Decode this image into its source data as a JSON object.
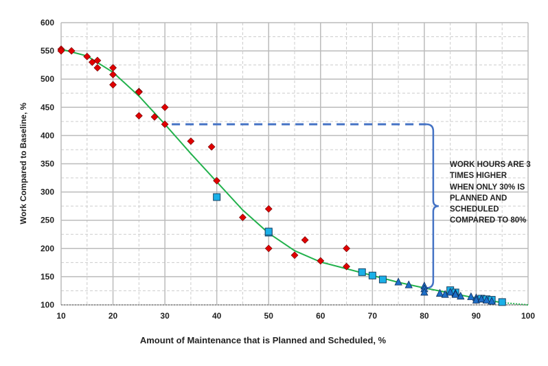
{
  "chart_data": {
    "type": "scatter",
    "title": "",
    "xlabel": "Amount of Maintenance that is Planned and Scheduled, %",
    "ylabel": "Work Compared to Baseline, %",
    "xlim": [
      10,
      100
    ],
    "ylim": [
      100,
      600
    ],
    "xticks": [
      10,
      20,
      30,
      40,
      50,
      60,
      70,
      80,
      90,
      100
    ],
    "yticks": [
      100,
      150,
      200,
      250,
      300,
      350,
      400,
      450,
      500,
      550,
      600
    ],
    "grid": true,
    "colors": {
      "diamond": "#e00000",
      "square": "#1ab0e8",
      "triangle": "#1e6fc8",
      "curve": "#22b14c",
      "annotation": "#4472c4"
    },
    "series": [
      {
        "marker": "diamond",
        "points": [
          [
            10,
            553
          ],
          [
            10,
            550
          ],
          [
            12,
            550
          ],
          [
            15,
            540
          ],
          [
            16,
            530
          ],
          [
            17,
            533
          ],
          [
            17,
            520
          ],
          [
            20,
            520
          ],
          [
            20,
            508
          ],
          [
            20,
            490
          ],
          [
            25,
            478
          ],
          [
            25,
            477
          ],
          [
            25,
            435
          ],
          [
            28,
            433
          ],
          [
            30,
            450
          ],
          [
            30,
            420
          ],
          [
            35,
            390
          ],
          [
            39,
            380
          ],
          [
            40,
            320
          ],
          [
            45,
            255
          ],
          [
            50,
            270
          ],
          [
            50,
            200
          ],
          [
            55,
            188
          ],
          [
            57,
            215
          ],
          [
            60,
            178
          ],
          [
            65,
            200
          ],
          [
            65,
            168
          ]
        ]
      },
      {
        "marker": "square",
        "points": [
          [
            40,
            291
          ],
          [
            50,
            228
          ],
          [
            50,
            230
          ],
          [
            68,
            158
          ],
          [
            70,
            152
          ],
          [
            72,
            145
          ],
          [
            85,
            126
          ],
          [
            86,
            122
          ],
          [
            91,
            111
          ],
          [
            92,
            110
          ],
          [
            93,
            109
          ],
          [
            95,
            105
          ]
        ]
      },
      {
        "marker": "triangle",
        "points": [
          [
            75,
            140
          ],
          [
            77,
            135
          ],
          [
            80,
            133
          ],
          [
            80,
            128
          ],
          [
            80,
            122
          ],
          [
            83,
            120
          ],
          [
            84,
            118
          ],
          [
            85,
            122
          ],
          [
            86,
            120
          ],
          [
            86,
            118
          ],
          [
            87,
            115
          ],
          [
            89,
            114
          ],
          [
            90,
            112
          ],
          [
            90,
            108
          ],
          [
            91,
            110
          ],
          [
            92,
            108
          ],
          [
            93,
            106
          ]
        ]
      }
    ],
    "trend_curve": [
      [
        10,
        553
      ],
      [
        15,
        541
      ],
      [
        20,
        512
      ],
      [
        25,
        470
      ],
      [
        30,
        420
      ],
      [
        35,
        368
      ],
      [
        40,
        318
      ],
      [
        45,
        268
      ],
      [
        50,
        227
      ],
      [
        55,
        196
      ],
      [
        60,
        176
      ],
      [
        65,
        164
      ],
      [
        70,
        152
      ],
      [
        75,
        140
      ],
      [
        80,
        130
      ],
      [
        85,
        121
      ],
      [
        90,
        112
      ],
      [
        95,
        104
      ],
      [
        100,
        100
      ]
    ],
    "annotation": {
      "text": "WORK HOURS ARE 3 TIMES HIGHER WHEN ONLY 30% IS PLANNED AND SCHEDULED COMPARED TO 80%",
      "reference_y": 420,
      "from_x": 30,
      "to_x": 80,
      "bracket_low": 130
    }
  }
}
